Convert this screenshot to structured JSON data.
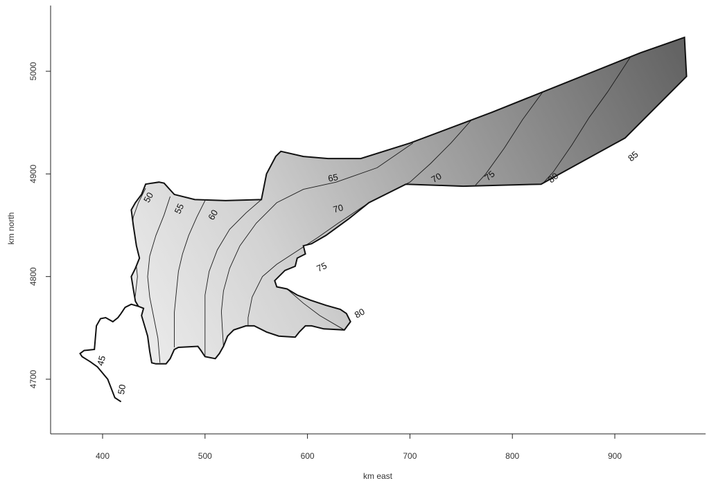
{
  "chart_data": {
    "type": "contour",
    "xlabel": "km east",
    "ylabel": "km north",
    "xlim": [
      350,
      1020
    ],
    "ylim": [
      4635,
      5060
    ],
    "xticks": [
      400,
      500,
      600,
      700,
      800,
      900
    ],
    "yticks": [
      4700,
      4800,
      4900,
      5000
    ],
    "grid": false,
    "fill": {
      "low_color": "#f6f6f6",
      "high_color": "#6e6e6e",
      "low_value": 42,
      "high_value": 88
    },
    "region_boundary": [
      [
        418,
        4678
      ],
      [
        412,
        4682
      ],
      [
        405,
        4700
      ],
      [
        395,
        4712
      ],
      [
        388,
        4717
      ],
      [
        380,
        4722
      ],
      [
        378,
        4725
      ],
      [
        382,
        4728
      ],
      [
        392,
        4729
      ],
      [
        394,
        4752
      ],
      [
        398,
        4759
      ],
      [
        403,
        4760
      ],
      [
        410,
        4756
      ],
      [
        415,
        4760
      ],
      [
        418,
        4764
      ],
      [
        422,
        4770
      ],
      [
        428,
        4773
      ],
      [
        435,
        4771
      ],
      [
        440,
        4769
      ],
      [
        438,
        4762
      ],
      [
        441,
        4752
      ],
      [
        444,
        4742
      ],
      [
        446,
        4727
      ],
      [
        448,
        4716
      ],
      [
        452,
        4715
      ],
      [
        462,
        4715
      ],
      [
        466,
        4720
      ],
      [
        470,
        4729
      ],
      [
        474,
        4731
      ],
      [
        493,
        4732
      ],
      [
        496,
        4728
      ],
      [
        500,
        4722
      ],
      [
        510,
        4720
      ],
      [
        514,
        4725
      ],
      [
        518,
        4732
      ],
      [
        522,
        4742
      ],
      [
        528,
        4748
      ],
      [
        540,
        4752
      ],
      [
        548,
        4752
      ],
      [
        560,
        4746
      ],
      [
        572,
        4742
      ],
      [
        588,
        4741
      ],
      [
        592,
        4746
      ],
      [
        598,
        4752
      ],
      [
        604,
        4752
      ],
      [
        616,
        4749
      ],
      [
        636,
        4748
      ],
      [
        642,
        4756
      ],
      [
        638,
        4764
      ],
      [
        632,
        4768
      ],
      [
        618,
        4772
      ],
      [
        603,
        4777
      ],
      [
        590,
        4782
      ],
      [
        580,
        4788
      ],
      [
        570,
        4790
      ],
      [
        568,
        4796
      ],
      [
        578,
        4806
      ],
      [
        588,
        4810
      ],
      [
        590,
        4818
      ],
      [
        598,
        4822
      ],
      [
        596,
        4830
      ],
      [
        604,
        4832
      ],
      [
        618,
        4840
      ],
      [
        640,
        4856
      ],
      [
        660,
        4872
      ],
      [
        696,
        4890
      ],
      [
        752,
        4888
      ],
      [
        828,
        4890
      ],
      [
        910,
        4935
      ],
      [
        970,
        4995
      ],
      [
        968,
        5033
      ],
      [
        925,
        5018
      ],
      [
        850,
        4988
      ],
      [
        780,
        4960
      ],
      [
        700,
        4930
      ],
      [
        652,
        4915
      ],
      [
        620,
        4915
      ],
      [
        596,
        4917
      ],
      [
        574,
        4922
      ],
      [
        569,
        4917
      ],
      [
        560,
        4900
      ],
      [
        555,
        4875
      ],
      [
        520,
        4874
      ],
      [
        490,
        4875
      ],
      [
        470,
        4880
      ],
      [
        460,
        4891
      ],
      [
        455,
        4892
      ],
      [
        448,
        4891
      ],
      [
        442,
        4890
      ],
      [
        438,
        4880
      ],
      [
        432,
        4872
      ],
      [
        428,
        4865
      ],
      [
        430,
        4850
      ],
      [
        433,
        4830
      ],
      [
        436,
        4818
      ],
      [
        432,
        4808
      ],
      [
        428,
        4800
      ],
      [
        430,
        4788
      ],
      [
        432,
        4776
      ],
      [
        435,
        4771
      ],
      [
        428,
        4773
      ],
      [
        422,
        4770
      ],
      [
        418,
        4764
      ],
      [
        415,
        4760
      ],
      [
        410,
        4756
      ],
      [
        403,
        4760
      ],
      [
        398,
        4759
      ],
      [
        394,
        4752
      ],
      [
        392,
        4729
      ],
      [
        382,
        4728
      ],
      [
        378,
        4725
      ],
      [
        380,
        4722
      ],
      [
        388,
        4717
      ],
      [
        395,
        4712
      ],
      [
        405,
        4700
      ],
      [
        412,
        4682
      ],
      [
        418,
        4678
      ]
    ],
    "contours": [
      {
        "level": 45,
        "points": [
          [
            392,
            4729
          ],
          [
            396,
            4718
          ],
          [
            402,
            4705
          ],
          [
            408,
            4692
          ],
          [
            412,
            4683
          ]
        ]
      },
      {
        "level": 50,
        "points": [
          [
            442,
            4886
          ],
          [
            435,
            4872
          ],
          [
            430,
            4858
          ],
          [
            428,
            4840
          ],
          [
            432,
            4820
          ],
          [
            434,
            4800
          ],
          [
            432,
            4782
          ],
          [
            430,
            4770
          ],
          [
            428,
            4755
          ],
          [
            424,
            4738
          ],
          [
            422,
            4720
          ],
          [
            422,
            4705
          ],
          [
            422,
            4690
          ],
          [
            420,
            4679
          ]
        ]
      },
      {
        "level": 55,
        "points": [
          [
            466,
            4878
          ],
          [
            460,
            4860
          ],
          [
            452,
            4840
          ],
          [
            446,
            4820
          ],
          [
            444,
            4800
          ],
          [
            446,
            4780
          ],
          [
            450,
            4760
          ],
          [
            454,
            4740
          ],
          [
            456,
            4716
          ]
        ]
      },
      {
        "level": 60,
        "points": [
          [
            500,
            4874
          ],
          [
            492,
            4858
          ],
          [
            484,
            4840
          ],
          [
            478,
            4822
          ],
          [
            474,
            4805
          ],
          [
            472,
            4785
          ],
          [
            470,
            4765
          ],
          [
            470,
            4745
          ],
          [
            470,
            4731
          ]
        ]
      },
      {
        "level": 65,
        "points": [
          [
            555,
            4875
          ],
          [
            540,
            4862
          ],
          [
            524,
            4846
          ],
          [
            512,
            4826
          ],
          [
            504,
            4805
          ],
          [
            500,
            4782
          ],
          [
            500,
            4760
          ],
          [
            500,
            4740
          ],
          [
            500,
            4722
          ]
        ]
      },
      {
        "level": 70,
        "points": [
          [
            703,
            4930
          ],
          [
            668,
            4906
          ],
          [
            628,
            4892
          ],
          [
            596,
            4885
          ],
          [
            570,
            4872
          ],
          [
            550,
            4852
          ],
          [
            534,
            4830
          ],
          [
            524,
            4808
          ],
          [
            518,
            4786
          ],
          [
            516,
            4766
          ],
          [
            517,
            4748
          ],
          [
            518,
            4732
          ]
        ]
      },
      {
        "level": 75,
        "points": [
          [
            764,
            4957
          ],
          [
            740,
            4930
          ],
          [
            720,
            4910
          ],
          [
            700,
            4892
          ],
          [
            660,
            4872
          ],
          [
            630,
            4852
          ],
          [
            610,
            4838
          ],
          [
            590,
            4825
          ],
          [
            570,
            4812
          ],
          [
            556,
            4800
          ],
          [
            546,
            4780
          ],
          [
            542,
            4760
          ],
          [
            542,
            4752
          ]
        ]
      },
      {
        "level": 80,
        "points": [
          [
            832,
            4983
          ],
          [
            810,
            4953
          ],
          [
            792,
            4925
          ],
          [
            774,
            4900
          ],
          [
            764,
            4889
          ]
        ]
      },
      {
        "level": 85,
        "points": [
          [
            916,
            5015
          ],
          [
            893,
            4980
          ],
          [
            875,
            4955
          ],
          [
            858,
            4928
          ],
          [
            840,
            4902
          ],
          [
            830,
            4891
          ]
        ]
      },
      {
        "level": 80,
        "points": [
          [
            636,
            4748
          ],
          [
            612,
            4762
          ],
          [
            596,
            4774
          ],
          [
            580,
            4788
          ],
          [
            571,
            4790
          ]
        ]
      }
    ],
    "contour_labels": [
      {
        "text": "45",
        "x": 399,
        "y": 4718,
        "angle": -75
      },
      {
        "text": "50",
        "x": 419,
        "y": 4690,
        "angle": -80
      },
      {
        "text": "50",
        "x": 445,
        "y": 4877,
        "angle": -60
      },
      {
        "text": "55",
        "x": 475,
        "y": 4866,
        "angle": -65
      },
      {
        "text": "60",
        "x": 508,
        "y": 4860,
        "angle": -60
      },
      {
        "text": "65",
        "x": 625,
        "y": 4896,
        "angle": -10
      },
      {
        "text": "70",
        "x": 630,
        "y": 4866,
        "angle": -15
      },
      {
        "text": "70",
        "x": 726,
        "y": 4896,
        "angle": -30
      },
      {
        "text": "75",
        "x": 778,
        "y": 4898,
        "angle": -40
      },
      {
        "text": "75",
        "x": 614,
        "y": 4809,
        "angle": -25
      },
      {
        "text": "80",
        "x": 840,
        "y": 4896,
        "angle": -40
      },
      {
        "text": "80",
        "x": 651,
        "y": 4764,
        "angle": -30
      },
      {
        "text": "85",
        "x": 918,
        "y": 4917,
        "angle": -40
      }
    ]
  }
}
